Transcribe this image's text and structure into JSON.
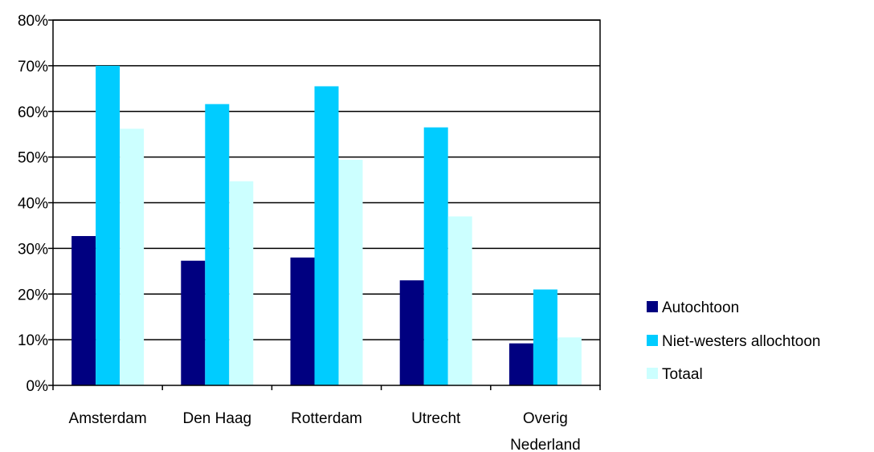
{
  "chart_data": {
    "type": "bar",
    "categories": [
      "Amsterdam",
      "Den Haag",
      "Rotterdam",
      "Utrecht",
      "Overig Nederland"
    ],
    "series": [
      {
        "name": "Autochtoon",
        "color": "#000080",
        "values": [
          32.7,
          27.3,
          28.0,
          23.0,
          9.2
        ]
      },
      {
        "name": "Niet-westers allochtoon",
        "color": "#00CCFF",
        "values": [
          70.0,
          61.6,
          65.5,
          56.5,
          21.0
        ]
      },
      {
        "name": "Totaal",
        "color": "#CCFFFF",
        "values": [
          56.2,
          44.7,
          49.4,
          37.0,
          10.5
        ]
      }
    ],
    "yticks": [
      "0%",
      "10%",
      "20%",
      "30%",
      "40%",
      "50%",
      "60%",
      "70%",
      "80%"
    ],
    "ylim": [
      0,
      80
    ],
    "grid": true,
    "legend_position": "right"
  }
}
